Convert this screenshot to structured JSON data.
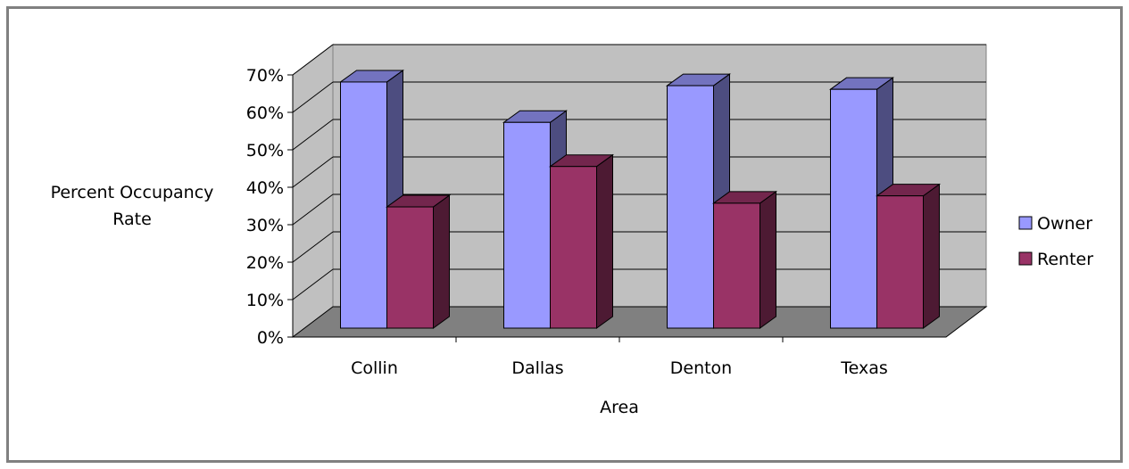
{
  "chart_data": {
    "type": "bar",
    "style": "3d-clustered-column",
    "categories": [
      "Collin",
      "Dallas",
      "Denton",
      "Texas"
    ],
    "series": [
      {
        "name": "Owner",
        "values": [
          0.67,
          0.56,
          0.66,
          0.65
        ],
        "color": "#9999FF",
        "side_color": "#4D4D80",
        "top_color": "#7373BF"
      },
      {
        "name": "Renter",
        "values": [
          0.33,
          0.44,
          0.34,
          0.36
        ],
        "color": "#993366",
        "side_color": "#4D1A33",
        "top_color": "#73264D"
      }
    ],
    "ylim": [
      0,
      0.7
    ],
    "yticks": [
      "0%",
      "10%",
      "20%",
      "30%",
      "40%",
      "50%",
      "60%",
      "70%"
    ],
    "ylabel_lines": [
      "Percent Occupancy",
      "Rate"
    ],
    "xlabel": "Area",
    "legend_position": "right",
    "grid": true,
    "colors": {
      "wall": "#C0C0C0",
      "floor": "#808080",
      "frame_border": "#808080"
    }
  }
}
